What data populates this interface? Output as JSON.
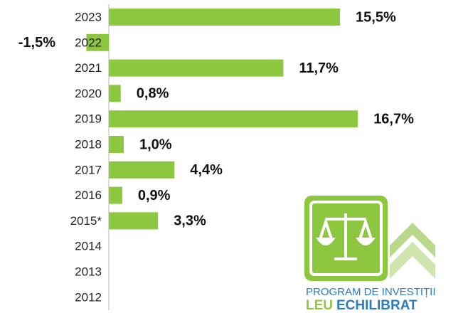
{
  "chart_data": {
    "type": "bar",
    "orientation": "horizontal",
    "categories": [
      "2023",
      "2022",
      "2021",
      "2020",
      "2019",
      "2018",
      "2017",
      "2016",
      "2015*",
      "2014",
      "2013",
      "2012"
    ],
    "values": [
      15.5,
      -1.5,
      11.7,
      0.8,
      16.7,
      1.0,
      4.4,
      0.9,
      3.3,
      null,
      null,
      null
    ],
    "value_labels": [
      "15,5%",
      "-1,5%",
      "11,7%",
      "0,8%",
      "16,7%",
      "1,0%",
      "4,4%",
      "0,9%",
      "3,3%",
      null,
      null,
      null
    ],
    "color": "#8dc63f"
  },
  "logo": {
    "line1": "PROGRAM DE INVESTIȚII",
    "word1": "LEU",
    "word2": "ECHILIBRAT"
  }
}
